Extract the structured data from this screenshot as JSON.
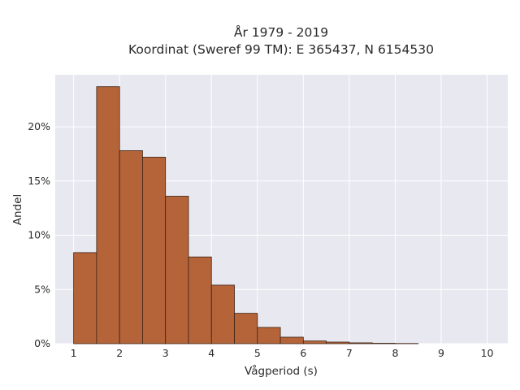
{
  "chart_data": {
    "type": "bar",
    "title": "År 1979 - 2019",
    "subtitle": "Koordinat (Sweref 99 TM): E 365437, N 6154530",
    "xlabel": "Vågperiod (s)",
    "ylabel": "Andel",
    "bin_width": 0.5,
    "bins": [
      {
        "start": 1.0,
        "value": 8.4
      },
      {
        "start": 1.5,
        "value": 23.7
      },
      {
        "start": 2.0,
        "value": 17.8
      },
      {
        "start": 2.5,
        "value": 17.2
      },
      {
        "start": 3.0,
        "value": 13.6
      },
      {
        "start": 3.5,
        "value": 8.0
      },
      {
        "start": 4.0,
        "value": 5.4
      },
      {
        "start": 4.5,
        "value": 2.8
      },
      {
        "start": 5.0,
        "value": 1.5
      },
      {
        "start": 5.5,
        "value": 0.6
      },
      {
        "start": 6.0,
        "value": 0.25
      },
      {
        "start": 6.5,
        "value": 0.15
      },
      {
        "start": 7.0,
        "value": 0.08
      },
      {
        "start": 7.5,
        "value": 0.04
      },
      {
        "start": 8.0,
        "value": 0.02
      }
    ],
    "xticks": [
      1,
      2,
      3,
      4,
      5,
      6,
      7,
      8,
      9,
      10
    ],
    "xtick_labels": [
      "1",
      "2",
      "3",
      "4",
      "5",
      "6",
      "7",
      "8",
      "9",
      "10"
    ],
    "yticks": [
      0,
      5,
      10,
      15,
      20
    ],
    "ytick_labels": [
      "0%",
      "5%",
      "10%",
      "15%",
      "20%"
    ],
    "xlim": [
      0.6,
      10.45
    ],
    "ylim": [
      0,
      24.8
    ],
    "grid": true,
    "colors": {
      "bar_fill": "#b5643a",
      "bar_stroke": "#3d2314",
      "plot_bg": "#e8e8f0",
      "grid": "#ffffff"
    }
  }
}
